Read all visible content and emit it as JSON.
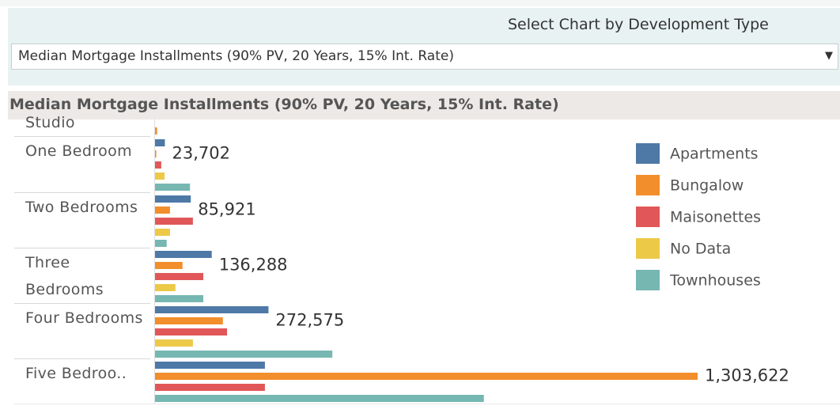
{
  "filter": {
    "label": "Select Chart by Development Type",
    "selected": "Median Mortgage Installments (90% PV, 20 Years, 15% Int. Rate)"
  },
  "chart_data": {
    "type": "bar",
    "orientation": "horizontal",
    "title": "Median Mortgage Installments (90% PV, 20 Years, 15% Int. Rate)",
    "categories": [
      "Studio",
      "One Bedroom",
      "Two Bedrooms",
      "Three Bedrooms",
      "Four Bedrooms",
      "Five Bedroo.."
    ],
    "series": [
      {
        "name": "Apartments",
        "color": "#4e79a7",
        "values": [
          null,
          23702,
          85921,
          136288,
          272575,
          264000
        ],
        "value_labels": [
          null,
          "23,702",
          "85,921",
          "136,288",
          "272,575",
          null
        ]
      },
      {
        "name": "Bungalow",
        "color": "#f28e2b",
        "values": [
          5000,
          3000,
          36000,
          66000,
          163000,
          1303622
        ],
        "value_labels": [
          null,
          null,
          null,
          null,
          null,
          "1,303,622"
        ]
      },
      {
        "name": "Maisonettes",
        "color": "#e15759",
        "values": [
          null,
          15000,
          91000,
          116000,
          173000,
          264000
        ]
      },
      {
        "name": "No Data",
        "color": "#edc948",
        "values": [
          null,
          23000,
          36000,
          49000,
          91000,
          null
        ]
      },
      {
        "name": "Townhouses",
        "color": "#76b7b2",
        "values": [
          null,
          84000,
          28000,
          116000,
          426000,
          790000
        ]
      }
    ],
    "legend": "right"
  }
}
